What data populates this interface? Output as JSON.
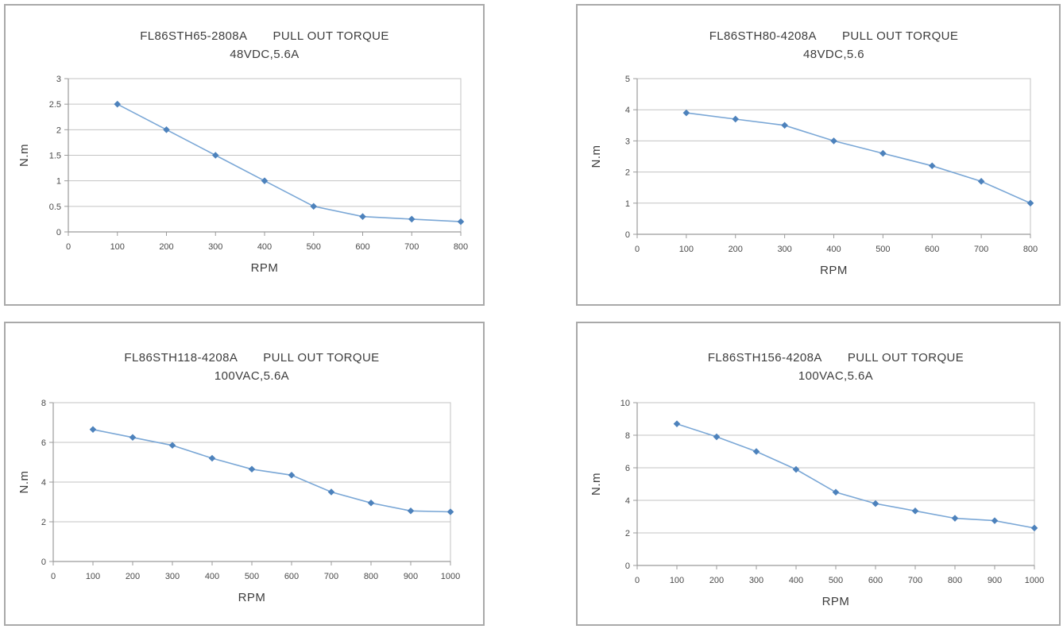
{
  "colors": {
    "line": "#7aa7d6",
    "marker": "#4d82bc",
    "grid": "#c3c3c3",
    "axis": "#9b9b9b",
    "tick_text": "#4a4a4a",
    "title_text": "#3d3d3d",
    "panel_border": "#a9a9a9",
    "background": "#ffffff"
  },
  "chart_data": [
    {
      "type": "line",
      "title_model": "FL86STH65-2808A",
      "title_label": "PULL OUT TORQUE",
      "subtitle": "48VDC,5.6A",
      "xlabel": "RPM",
      "ylabel": "N.m",
      "x": [
        100,
        200,
        300,
        400,
        500,
        600,
        700,
        800
      ],
      "values": [
        2.5,
        2.0,
        1.5,
        1.0,
        0.5,
        0.3,
        0.25,
        0.2
      ],
      "xlim": [
        0,
        800
      ],
      "ylim": [
        0,
        3
      ],
      "xtick_step": 100,
      "ytick_step": 0.5,
      "grid": "horizontal",
      "legend": "none"
    },
    {
      "type": "line",
      "title_model": "FL86STH80-4208A",
      "title_label": "PULL OUT TORQUE",
      "subtitle": "48VDC,5.6",
      "xlabel": "RPM",
      "ylabel": "N.m",
      "x": [
        100,
        200,
        300,
        400,
        500,
        600,
        700,
        800
      ],
      "values": [
        3.9,
        3.7,
        3.5,
        3.0,
        2.6,
        2.2,
        1.7,
        1.0
      ],
      "xlim": [
        0,
        800
      ],
      "ylim": [
        0,
        5
      ],
      "xtick_step": 100,
      "ytick_step": 1,
      "grid": "horizontal",
      "legend": "none"
    },
    {
      "type": "line",
      "title_model": "FL86STH118-4208A",
      "title_label": "PULL OUT TORQUE",
      "subtitle": "100VAC,5.6A",
      "xlabel": "RPM",
      "ylabel": "N.m",
      "x": [
        100,
        200,
        300,
        400,
        500,
        600,
        700,
        800,
        900,
        1000
      ],
      "values": [
        6.65,
        6.25,
        5.85,
        5.2,
        4.65,
        4.35,
        3.5,
        2.95,
        2.55,
        2.5
      ],
      "xlim": [
        0,
        1000
      ],
      "ylim": [
        0,
        8
      ],
      "xtick_step": 100,
      "ytick_step": 2,
      "grid": "horizontal",
      "legend": "none"
    },
    {
      "type": "line",
      "title_model": "FL86STH156-4208A",
      "title_label": "PULL OUT TORQUE",
      "subtitle": "100VAC,5.6A",
      "xlabel": "RPM",
      "ylabel": "N.m",
      "x": [
        100,
        200,
        300,
        400,
        500,
        600,
        700,
        800,
        900,
        1000
      ],
      "values": [
        8.7,
        7.9,
        7.0,
        5.9,
        4.5,
        3.8,
        3.35,
        2.9,
        2.75,
        2.3
      ],
      "xlim": [
        0,
        1000
      ],
      "ylim": [
        0,
        10
      ],
      "xtick_step": 100,
      "ytick_step": 2,
      "grid": "horizontal",
      "legend": "none"
    }
  ]
}
